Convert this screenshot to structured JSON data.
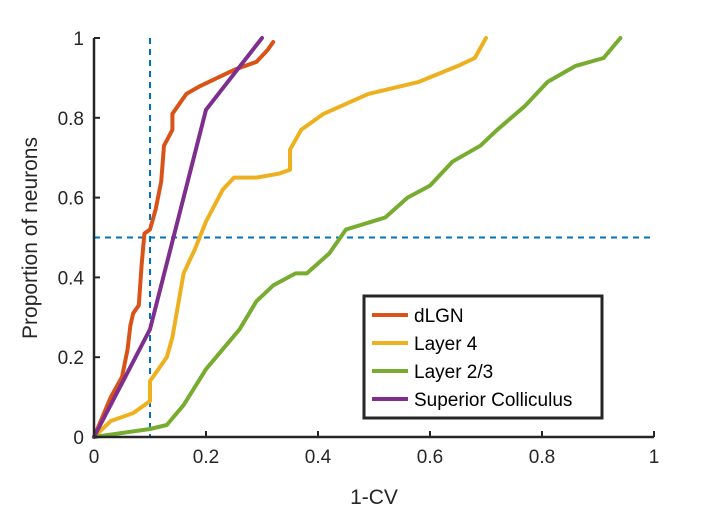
{
  "chart_data": {
    "type": "line",
    "xlabel": "1-CV",
    "ylabel": "Proportion of neurons",
    "xlim": [
      0,
      1
    ],
    "ylim": [
      0,
      1
    ],
    "x_ticks": [
      "0",
      "0.2",
      "0.4",
      "0.6",
      "0.8",
      "1"
    ],
    "y_ticks": [
      "0",
      "0.2",
      "0.4",
      "0.6",
      "0.8",
      "1"
    ],
    "grid": false,
    "legend_position": "bottom-right",
    "reference_lines": {
      "x": 0.1,
      "y": 0.5,
      "color": "#0072BD",
      "style": "dashed"
    },
    "series": [
      {
        "name": "dLGN",
        "color": "#D95319",
        "points": [
          [
            0,
            0
          ],
          [
            0.03,
            0.1
          ],
          [
            0.05,
            0.15
          ],
          [
            0.06,
            0.22
          ],
          [
            0.065,
            0.28
          ],
          [
            0.07,
            0.31
          ],
          [
            0.08,
            0.33
          ],
          [
            0.085,
            0.43
          ],
          [
            0.09,
            0.51
          ],
          [
            0.1,
            0.52
          ],
          [
            0.11,
            0.57
          ],
          [
            0.12,
            0.64
          ],
          [
            0.125,
            0.73
          ],
          [
            0.14,
            0.77
          ],
          [
            0.14,
            0.81
          ],
          [
            0.155,
            0.84
          ],
          [
            0.165,
            0.86
          ],
          [
            0.19,
            0.88
          ],
          [
            0.22,
            0.9
          ],
          [
            0.25,
            0.92
          ],
          [
            0.29,
            0.94
          ],
          [
            0.31,
            0.97
          ],
          [
            0.32,
            0.99
          ]
        ]
      },
      {
        "name": "Layer 4",
        "color": "#EDB120",
        "points": [
          [
            0,
            0
          ],
          [
            0.03,
            0.04
          ],
          [
            0.07,
            0.06
          ],
          [
            0.09,
            0.08
          ],
          [
            0.1,
            0.09
          ],
          [
            0.1,
            0.14
          ],
          [
            0.13,
            0.2
          ],
          [
            0.14,
            0.25
          ],
          [
            0.15,
            0.33
          ],
          [
            0.16,
            0.41
          ],
          [
            0.18,
            0.47
          ],
          [
            0.2,
            0.54
          ],
          [
            0.23,
            0.62
          ],
          [
            0.25,
            0.65
          ],
          [
            0.29,
            0.65
          ],
          [
            0.33,
            0.66
          ],
          [
            0.35,
            0.67
          ],
          [
            0.35,
            0.72
          ],
          [
            0.37,
            0.77
          ],
          [
            0.41,
            0.81
          ],
          [
            0.49,
            0.86
          ],
          [
            0.58,
            0.89
          ],
          [
            0.65,
            0.93
          ],
          [
            0.68,
            0.95
          ],
          [
            0.7,
            1.0
          ]
        ]
      },
      {
        "name": "Layer 2/3",
        "color": "#77AC30",
        "points": [
          [
            0,
            0
          ],
          [
            0.05,
            0.01
          ],
          [
            0.1,
            0.02
          ],
          [
            0.13,
            0.03
          ],
          [
            0.16,
            0.08
          ],
          [
            0.2,
            0.17
          ],
          [
            0.23,
            0.22
          ],
          [
            0.26,
            0.27
          ],
          [
            0.29,
            0.34
          ],
          [
            0.32,
            0.38
          ],
          [
            0.36,
            0.41
          ],
          [
            0.38,
            0.41
          ],
          [
            0.42,
            0.46
          ],
          [
            0.45,
            0.52
          ],
          [
            0.52,
            0.55
          ],
          [
            0.56,
            0.6
          ],
          [
            0.6,
            0.63
          ],
          [
            0.64,
            0.69
          ],
          [
            0.69,
            0.73
          ],
          [
            0.72,
            0.77
          ],
          [
            0.77,
            0.83
          ],
          [
            0.81,
            0.89
          ],
          [
            0.86,
            0.93
          ],
          [
            0.91,
            0.95
          ],
          [
            0.94,
            1.0
          ]
        ]
      },
      {
        "name": "Superior Colliculus",
        "color": "#7E2F8E",
        "points": [
          [
            0,
            0
          ],
          [
            0.1,
            0.27
          ],
          [
            0.2,
            0.82
          ],
          [
            0.3,
            1.0
          ]
        ]
      }
    ]
  }
}
